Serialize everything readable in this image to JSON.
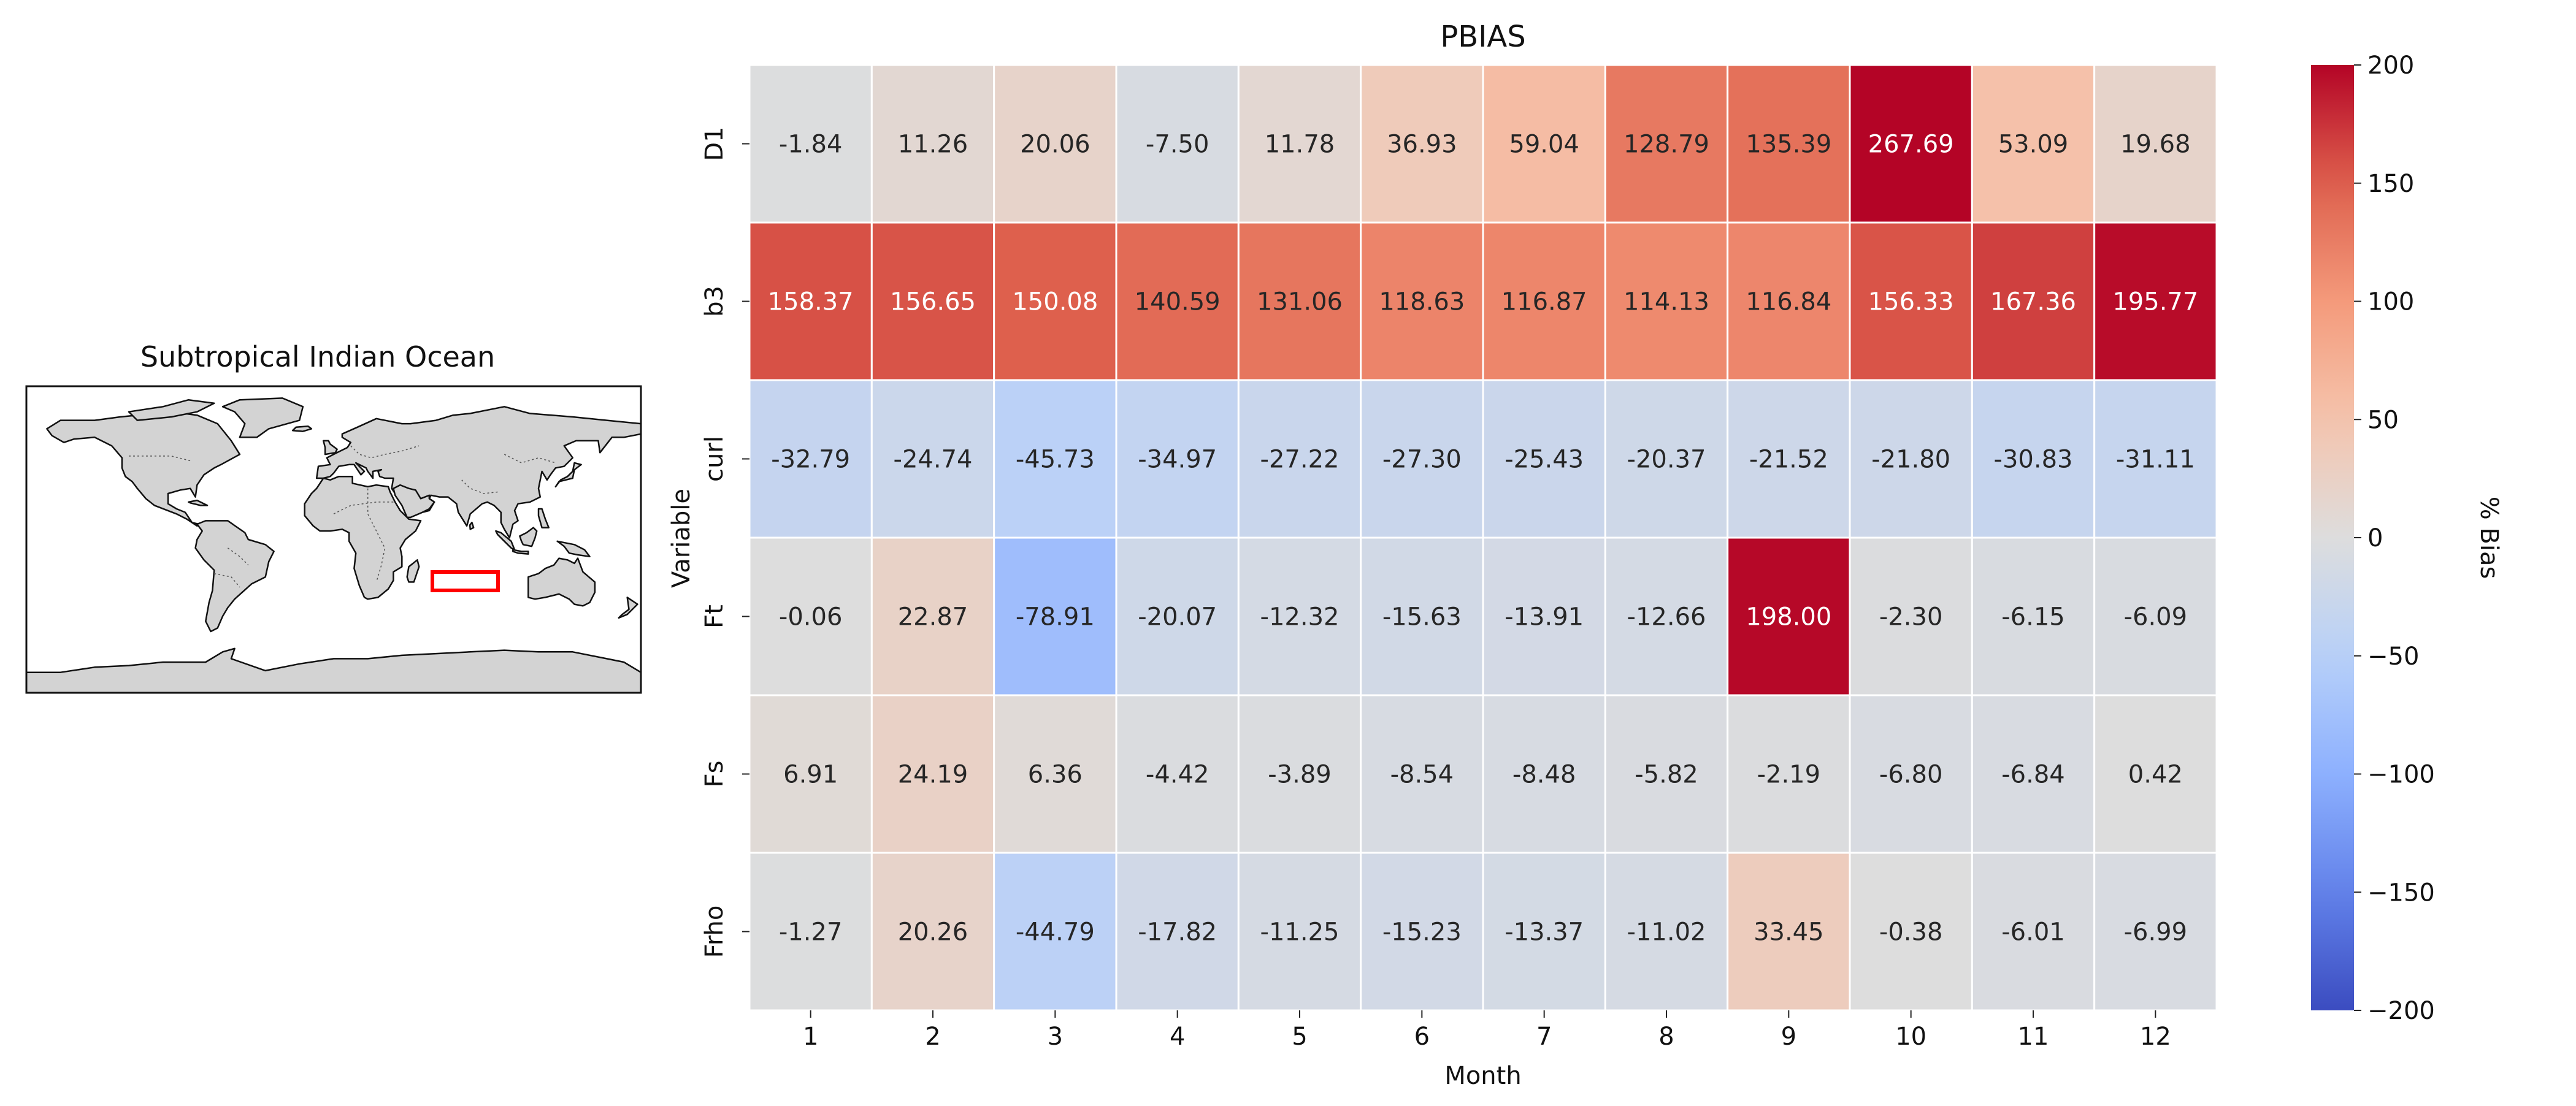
{
  "map_panel": {
    "title": "Subtropical Indian Ocean",
    "land_color": "#d3d3d3",
    "highlight_color": "#ff0000"
  },
  "chart_data": {
    "type": "heatmap",
    "title": "PBIAS",
    "xlabel": "Month",
    "ylabel": "Variable",
    "x": [
      "1",
      "2",
      "3",
      "4",
      "5",
      "6",
      "7",
      "8",
      "9",
      "10",
      "11",
      "12"
    ],
    "y": [
      "D1",
      "b3",
      "curl",
      "Ft",
      "Fs",
      "Frho"
    ],
    "values": [
      [
        -1.84,
        11.26,
        20.06,
        -7.5,
        11.78,
        36.93,
        59.04,
        128.79,
        135.39,
        267.69,
        53.09,
        19.68
      ],
      [
        158.37,
        156.65,
        150.08,
        140.59,
        131.06,
        118.63,
        116.87,
        114.13,
        116.84,
        156.33,
        167.36,
        195.77
      ],
      [
        -32.79,
        -24.74,
        -45.73,
        -34.97,
        -27.22,
        -27.3,
        -25.43,
        -20.37,
        -21.52,
        -21.8,
        -30.83,
        -31.11
      ],
      [
        -0.06,
        22.87,
        -78.91,
        -20.07,
        -12.32,
        -15.63,
        -13.91,
        -12.66,
        198.0,
        -2.3,
        -6.15,
        -6.09
      ],
      [
        6.91,
        24.19,
        6.36,
        -4.42,
        -3.89,
        -8.54,
        -8.48,
        -5.82,
        -2.19,
        -6.8,
        -6.84,
        0.42
      ],
      [
        -1.27,
        20.26,
        -44.79,
        -17.82,
        -11.25,
        -15.23,
        -13.37,
        -11.02,
        33.45,
        -0.38,
        -6.01,
        -6.99
      ]
    ],
    "colormap": "coolwarm",
    "vmin": -200,
    "vmax": 200,
    "colorbar": {
      "label": "% Bias",
      "ticks": [
        200,
        150,
        100,
        50,
        0,
        -50,
        -100,
        -150,
        -200
      ],
      "tick_labels": [
        "200",
        "150",
        "100",
        "50",
        "0",
        "−50",
        "−100",
        "−150",
        "−200"
      ]
    }
  }
}
